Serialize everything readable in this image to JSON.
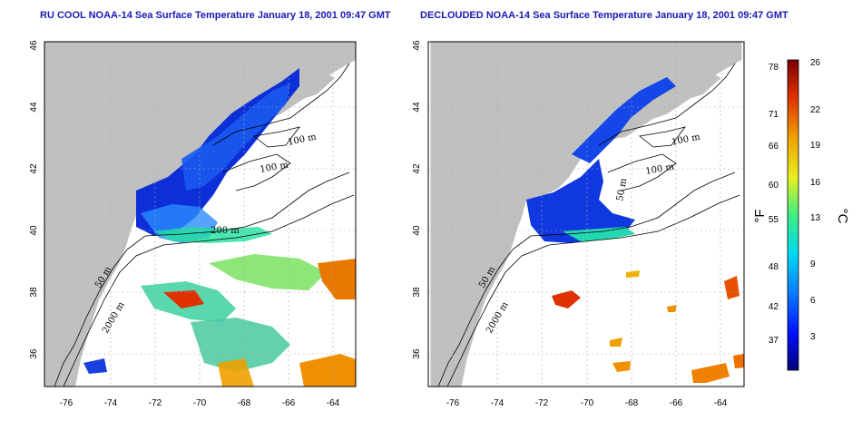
{
  "titles": {
    "left": "RU COOL NOAA-14 Sea Surface Temperature January 18, 2001 09:47 GMT",
    "right": "DECLOUDED NOAA-14 Sea Surface Temperature January 18, 2001 09:47 GMT"
  },
  "axes": {
    "lon_ticks": [
      "-76",
      "-74",
      "-72",
      "-70",
      "-68",
      "-66",
      "-64"
    ],
    "lat_ticks": [
      "36",
      "38",
      "40",
      "42",
      "44",
      "46"
    ]
  },
  "isobaths": {
    "m100a": "100 m",
    "m100b": "100 m",
    "m50a": "50 m",
    "m200": "200 m",
    "m50b": "50 m",
    "m2000": "2000 m"
  },
  "colorbar": {
    "fahrenheit_ticks": [
      "78",
      "71",
      "66",
      "60",
      "55",
      "48",
      "42",
      "37"
    ],
    "celsius_ticks": [
      "26",
      "22",
      "19",
      "16",
      "13",
      "9",
      "6",
      "3"
    ],
    "unit_f": "°F",
    "unit_c": "°C",
    "colors": [
      "#00007a",
      "#0010ff",
      "#0a7cff",
      "#00dcf0",
      "#3cf080",
      "#e8f020",
      "#f0a000",
      "#e03000",
      "#7a0000"
    ]
  }
}
